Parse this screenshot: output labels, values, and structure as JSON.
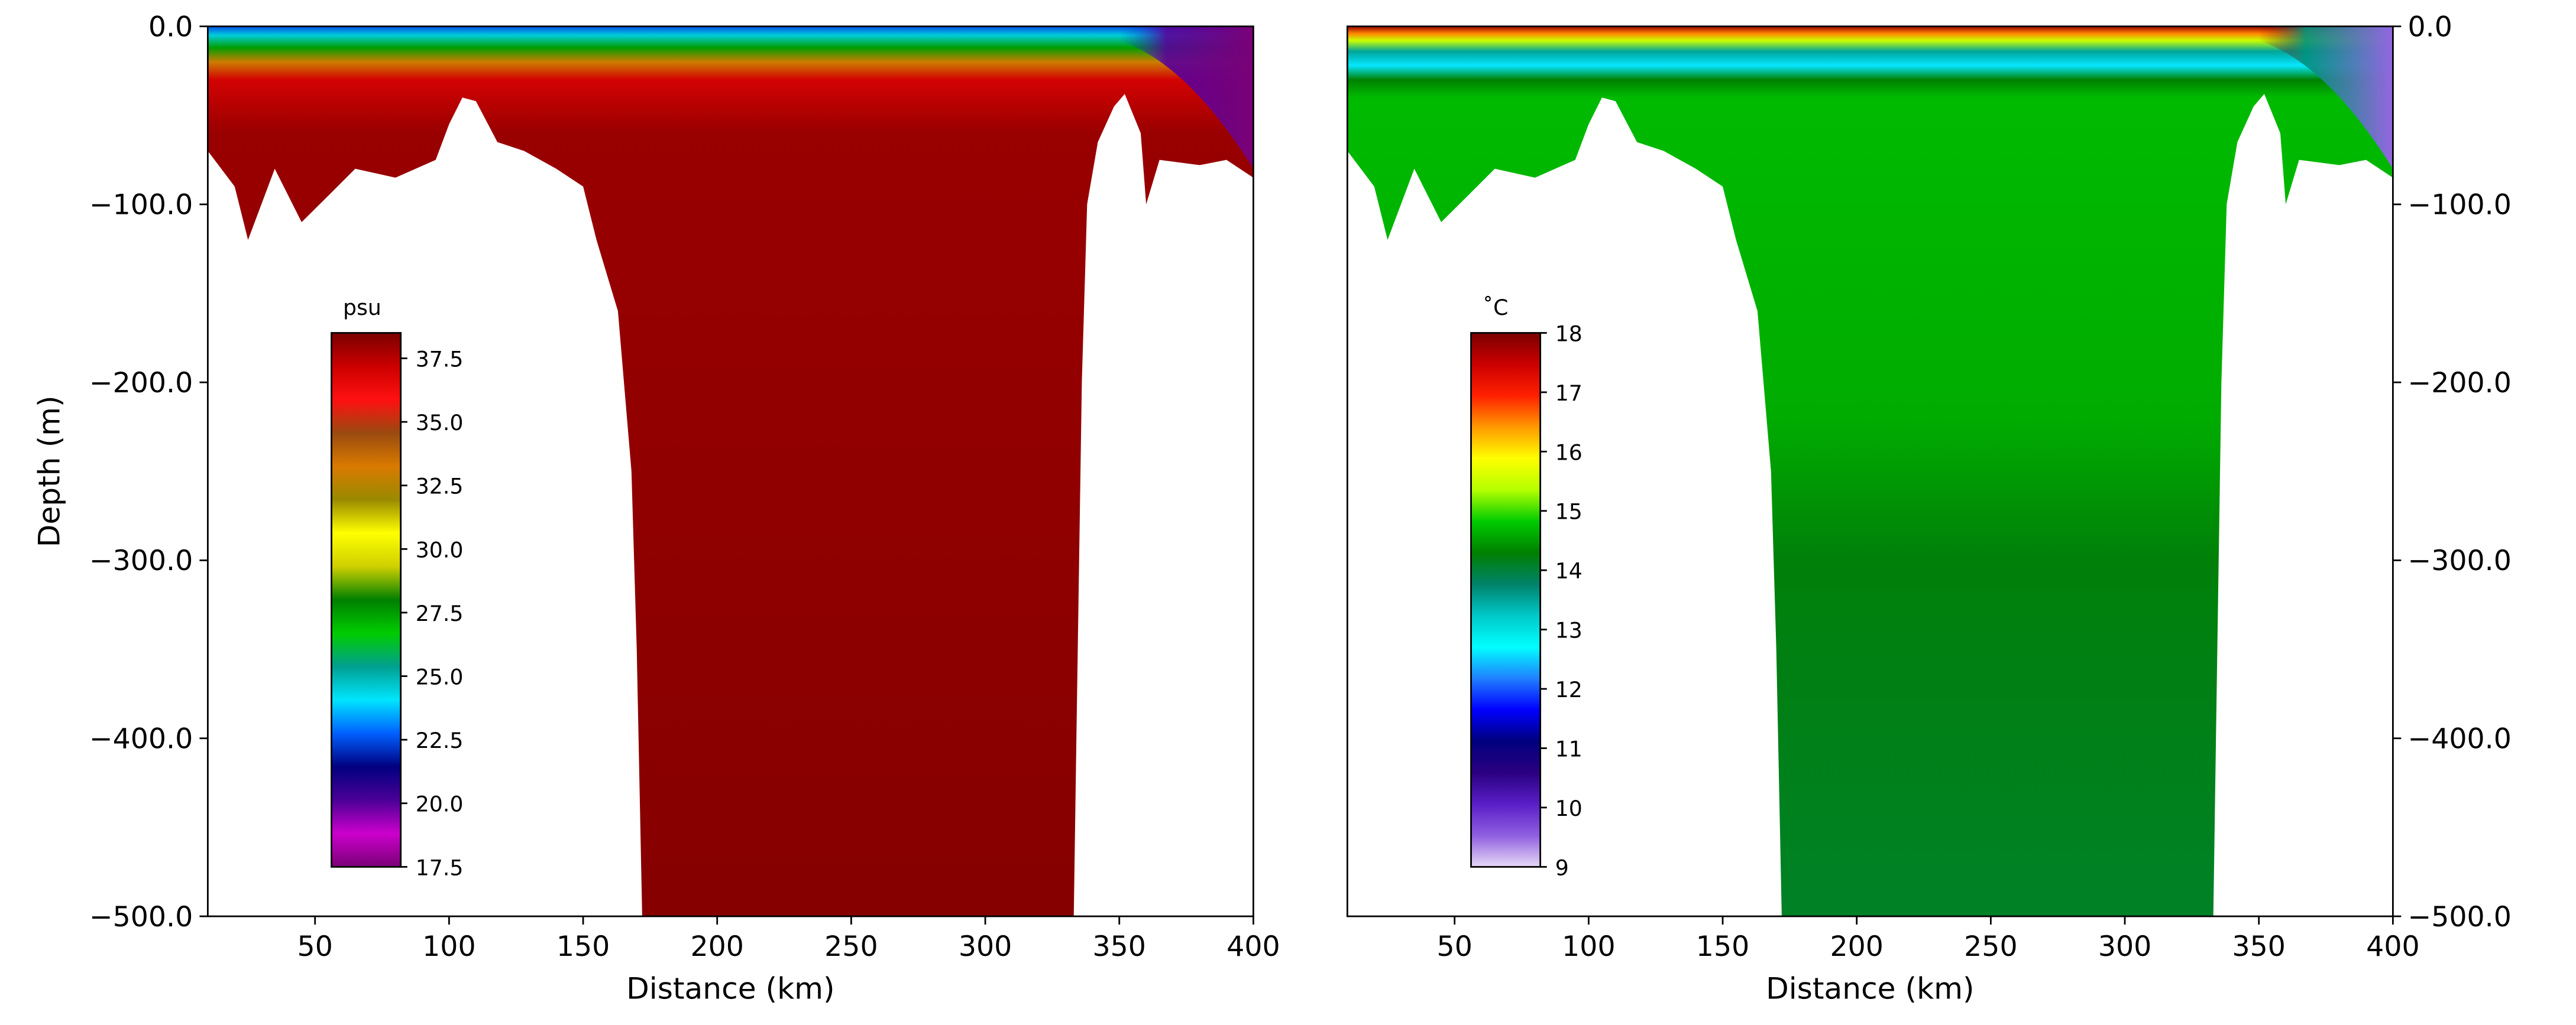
{
  "chart_data": [
    {
      "type": "heatmap",
      "panel": "salinity",
      "xlabel": "Distance (km)",
      "ylabel": "Depth (m)",
      "xlim": [
        10,
        400
      ],
      "ylim": [
        -500.0,
        0.0
      ],
      "xticks": [
        "50",
        "100",
        "150",
        "200",
        "250",
        "300",
        "350",
        "400"
      ],
      "xtick_values": [
        50,
        100,
        150,
        200,
        250,
        300,
        350,
        400
      ],
      "yticks": [
        "0.0",
        "−100.0",
        "−200.0",
        "−300.0",
        "−400.0",
        "−500.0"
      ],
      "ytick_values": [
        0,
        -100,
        -200,
        -300,
        -400,
        -500
      ],
      "yaxis_side": "left",
      "colorbar": {
        "label": "psu",
        "range": [
          17.5,
          38.5
        ],
        "ticks": [
          "37.5",
          "35.0",
          "32.5",
          "30.0",
          "27.5",
          "25.0",
          "22.5",
          "20.0",
          "17.5"
        ],
        "tick_values": [
          37.5,
          35.0,
          32.5,
          30.0,
          27.5,
          25.0,
          22.5,
          20.0,
          17.5
        ],
        "colors": [
          "#7a0177",
          "#cc00cc",
          "#4b0096",
          "#000080",
          "#0060ff",
          "#00e5ff",
          "#00a090",
          "#00cc00",
          "#008000",
          "#cfd000",
          "#ffff00",
          "#9a8a00",
          "#d97a00",
          "#9a4a10",
          "#ff1010",
          "#cc0000",
          "#7a0000"
        ]
      },
      "surface_profile": [
        {
          "depth": 0,
          "value": 22.5
        },
        {
          "depth": -5,
          "value": 24.5
        },
        {
          "depth": -12,
          "value": 27.5
        },
        {
          "depth": -20,
          "value": 33.0
        },
        {
          "depth": -30,
          "value": 37.0
        },
        {
          "depth": -60,
          "value": 38.0
        },
        {
          "depth": -500,
          "value": 38.3
        }
      ],
      "bottom_profile": [
        {
          "x": 10,
          "depth": -70
        },
        {
          "x": 20,
          "depth": -90
        },
        {
          "x": 25,
          "depth": -120
        },
        {
          "x": 35,
          "depth": -80
        },
        {
          "x": 45,
          "depth": -110
        },
        {
          "x": 55,
          "depth": -95
        },
        {
          "x": 65,
          "depth": -80
        },
        {
          "x": 80,
          "depth": -85
        },
        {
          "x": 95,
          "depth": -75
        },
        {
          "x": 100,
          "depth": -55
        },
        {
          "x": 105,
          "depth": -40
        },
        {
          "x": 110,
          "depth": -42
        },
        {
          "x": 118,
          "depth": -65
        },
        {
          "x": 128,
          "depth": -70
        },
        {
          "x": 140,
          "depth": -80
        },
        {
          "x": 150,
          "depth": -90
        },
        {
          "x": 155,
          "depth": -120
        },
        {
          "x": 163,
          "depth": -160
        },
        {
          "x": 168,
          "depth": -250
        },
        {
          "x": 170,
          "depth": -350
        },
        {
          "x": 172,
          "depth": -500
        },
        {
          "x": 333,
          "depth": -500
        },
        {
          "x": 334,
          "depth": -400
        },
        {
          "x": 336,
          "depth": -200
        },
        {
          "x": 338,
          "depth": -100
        },
        {
          "x": 342,
          "depth": -65
        },
        {
          "x": 348,
          "depth": -45
        },
        {
          "x": 352,
          "depth": -38
        },
        {
          "x": 358,
          "depth": -60
        },
        {
          "x": 360,
          "depth": -100
        },
        {
          "x": 365,
          "depth": -75
        },
        {
          "x": 380,
          "depth": -78
        },
        {
          "x": 390,
          "depth": -75
        },
        {
          "x": 400,
          "depth": -85
        }
      ],
      "east_plume": {
        "x_from": 350,
        "x_to": 400,
        "value_at_edge": 17.5,
        "depth_at_edge": -80
      }
    },
    {
      "type": "heatmap",
      "panel": "temperature",
      "xlabel": "Distance (km)",
      "ylabel": "",
      "xlim": [
        10,
        400
      ],
      "ylim": [
        -500.0,
        0.0
      ],
      "xticks": [
        "50",
        "100",
        "150",
        "200",
        "250",
        "300",
        "350",
        "400"
      ],
      "xtick_values": [
        50,
        100,
        150,
        200,
        250,
        300,
        350,
        400
      ],
      "yticks": [
        "0.0",
        "−100.0",
        "−200.0",
        "−300.0",
        "−400.0",
        "−500.0"
      ],
      "ytick_values": [
        0,
        -100,
        -200,
        -300,
        -400,
        -500
      ],
      "yaxis_side": "right",
      "colorbar": {
        "label": "˚C",
        "range": [
          9,
          18
        ],
        "ticks": [
          "18",
          "17",
          "16",
          "15",
          "14",
          "13",
          "12",
          "11",
          "10",
          "9"
        ],
        "tick_values": [
          18,
          17,
          16,
          15,
          14,
          13,
          12,
          11,
          10,
          9
        ],
        "colors": [
          "#e6d8f5",
          "#8f5fe0",
          "#5a1ec8",
          "#2a0080",
          "#000080",
          "#0000ff",
          "#2080ff",
          "#00ffff",
          "#00c8c8",
          "#00826a",
          "#008000",
          "#00cc00",
          "#b5ff00",
          "#ffff00",
          "#ff9900",
          "#ff2000",
          "#cc0000",
          "#7a0000"
        ]
      },
      "surface_profile": [
        {
          "depth": 0,
          "value": 17.8
        },
        {
          "depth": -4,
          "value": 16.5
        },
        {
          "depth": -8,
          "value": 15.5
        },
        {
          "depth": -14,
          "value": 13.5
        },
        {
          "depth": -22,
          "value": 12.6
        },
        {
          "depth": -30,
          "value": 14.3
        },
        {
          "depth": -40,
          "value": 14.7
        },
        {
          "depth": -220,
          "value": 14.6
        },
        {
          "depth": -300,
          "value": 14.25
        },
        {
          "depth": -500,
          "value": 14.1
        }
      ],
      "bottom_profile": [
        {
          "x": 10,
          "depth": -70
        },
        {
          "x": 20,
          "depth": -90
        },
        {
          "x": 25,
          "depth": -120
        },
        {
          "x": 35,
          "depth": -80
        },
        {
          "x": 45,
          "depth": -110
        },
        {
          "x": 55,
          "depth": -95
        },
        {
          "x": 65,
          "depth": -80
        },
        {
          "x": 80,
          "depth": -85
        },
        {
          "x": 95,
          "depth": -75
        },
        {
          "x": 100,
          "depth": -55
        },
        {
          "x": 105,
          "depth": -40
        },
        {
          "x": 110,
          "depth": -42
        },
        {
          "x": 118,
          "depth": -65
        },
        {
          "x": 128,
          "depth": -70
        },
        {
          "x": 140,
          "depth": -80
        },
        {
          "x": 150,
          "depth": -90
        },
        {
          "x": 155,
          "depth": -120
        },
        {
          "x": 163,
          "depth": -160
        },
        {
          "x": 168,
          "depth": -250
        },
        {
          "x": 170,
          "depth": -350
        },
        {
          "x": 172,
          "depth": -500
        },
        {
          "x": 333,
          "depth": -500
        },
        {
          "x": 334,
          "depth": -400
        },
        {
          "x": 336,
          "depth": -200
        },
        {
          "x": 338,
          "depth": -100
        },
        {
          "x": 342,
          "depth": -65
        },
        {
          "x": 348,
          "depth": -45
        },
        {
          "x": 352,
          "depth": -38
        },
        {
          "x": 358,
          "depth": -60
        },
        {
          "x": 360,
          "depth": -100
        },
        {
          "x": 365,
          "depth": -75
        },
        {
          "x": 380,
          "depth": -78
        },
        {
          "x": 390,
          "depth": -75
        },
        {
          "x": 400,
          "depth": -85
        }
      ],
      "east_plume": {
        "x_from": 350,
        "x_to": 400,
        "value_at_edge": 9.5,
        "depth_at_edge": -80
      }
    }
  ]
}
